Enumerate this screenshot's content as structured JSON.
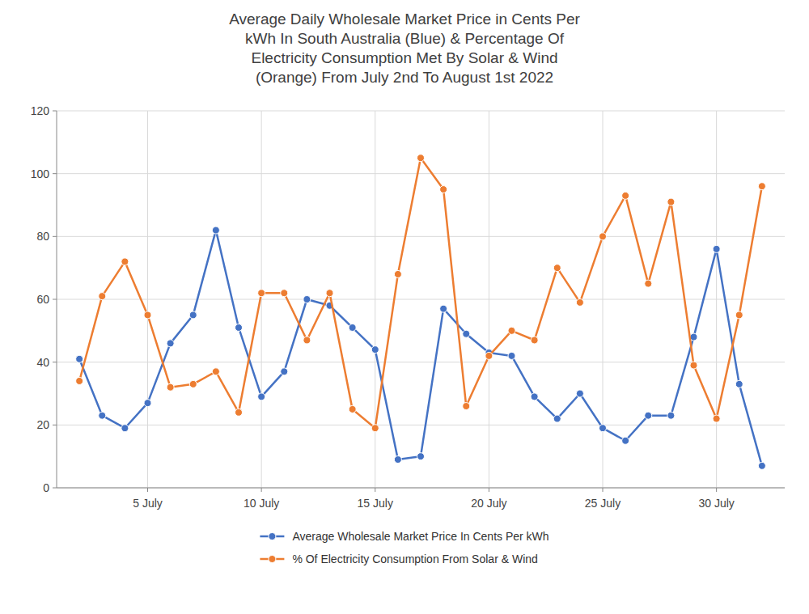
{
  "chart_data": {
    "type": "line",
    "title": "Average Daily Wholesale Market Price in Cents Per\nkWh In South Australia (Blue) & Percentage Of\nElectricity Consumption Met By Solar & Wind\n(Orange) From July 2nd To August 1st 2022",
    "x": [
      2,
      3,
      4,
      5,
      6,
      7,
      8,
      9,
      10,
      11,
      12,
      13,
      14,
      15,
      16,
      17,
      18,
      19,
      20,
      21,
      22,
      23,
      24,
      25,
      26,
      27,
      28,
      29,
      30,
      31,
      32
    ],
    "series": [
      {
        "name": "Average Wholesale Market Price In Cents Per kWh",
        "color": "#4472C4",
        "marker": "circle",
        "values": [
          41,
          23,
          19,
          27,
          46,
          55,
          82,
          51,
          29,
          37,
          60,
          58,
          51,
          44,
          9,
          10,
          57,
          49,
          43,
          42,
          29,
          22,
          30,
          19,
          15,
          23,
          23,
          48,
          76,
          33,
          7
        ]
      },
      {
        "name": "% Of Electricity Consumption From Solar & Wind",
        "color": "#ED7D31",
        "marker": "circle",
        "values": [
          34,
          61,
          72,
          55,
          32,
          33,
          37,
          24,
          62,
          62,
          47,
          62,
          25,
          19,
          68,
          105,
          95,
          26,
          42,
          50,
          47,
          70,
          59,
          80,
          93,
          65,
          91,
          39,
          22,
          55,
          96
        ]
      }
    ],
    "xlim": [
      1,
      33
    ],
    "xticks": [
      {
        "value": 5,
        "label": "5 July"
      },
      {
        "value": 10,
        "label": "10 July"
      },
      {
        "value": 15,
        "label": "15 July"
      },
      {
        "value": 20,
        "label": "20 July"
      },
      {
        "value": 25,
        "label": "25 July"
      },
      {
        "value": 30,
        "label": "30 July"
      }
    ],
    "ylim": [
      0,
      120
    ],
    "yticks": [
      0,
      20,
      40,
      60,
      80,
      100,
      120
    ],
    "grid": true,
    "legend": "bottom"
  }
}
